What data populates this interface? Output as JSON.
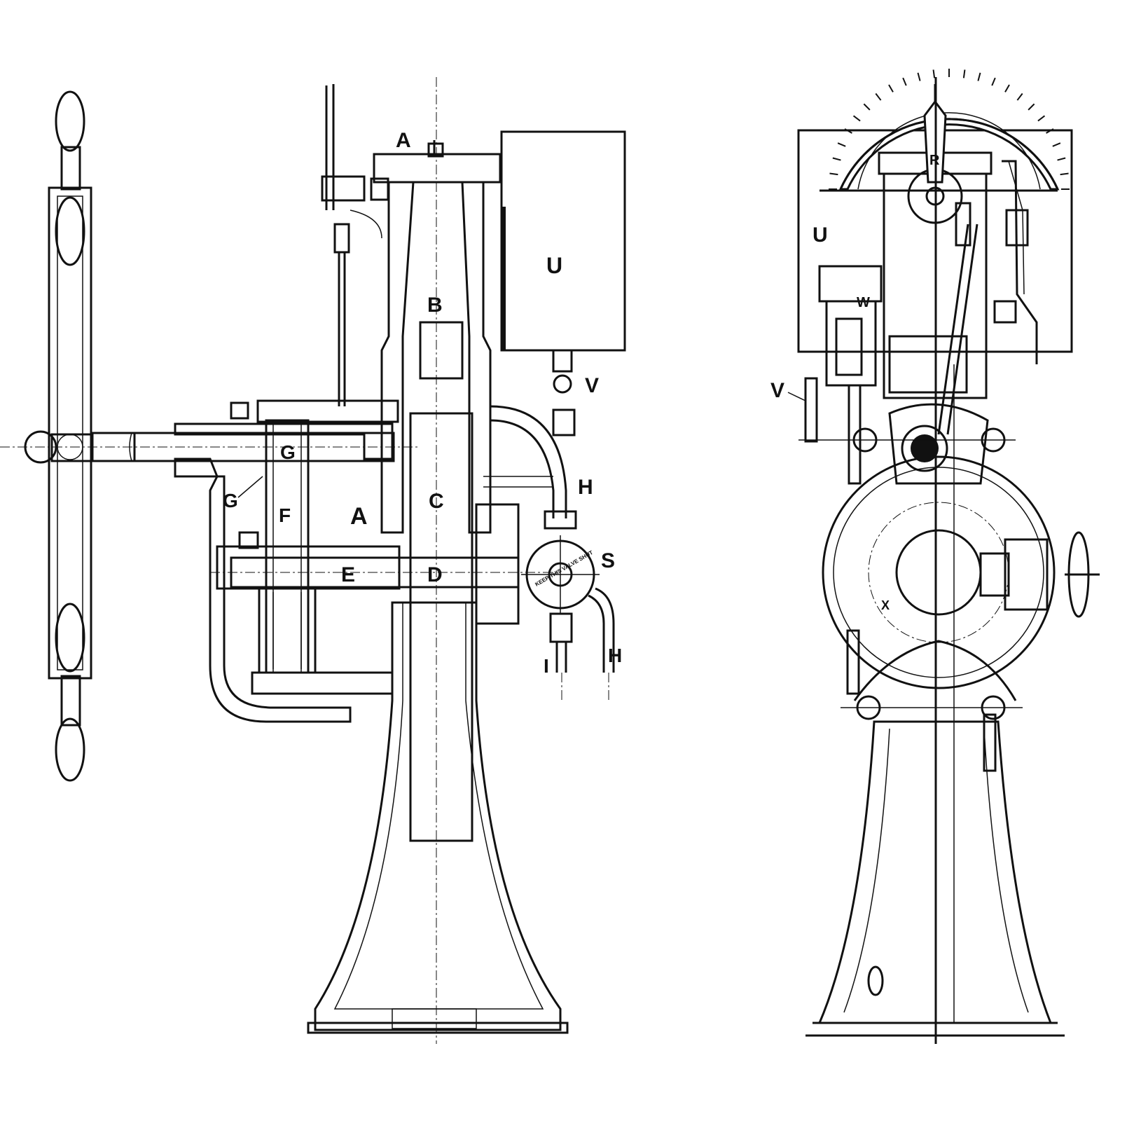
{
  "section_view": {
    "labels": {
      "A_top": "A",
      "B": "B",
      "U": "U",
      "V": "V",
      "G_gear": "G",
      "G_pointer": "G",
      "F": "F",
      "A_mid": "A",
      "C": "C",
      "H_upper": "H",
      "E": "E",
      "D": "D",
      "S": "S",
      "valve_plate": "KEEP THIS VALVE SHUT",
      "I": "I",
      "H_lower": "H"
    }
  },
  "front_view": {
    "labels": {
      "R": "R",
      "U": "U",
      "W": "W",
      "V": "V",
      "X": "X"
    }
  }
}
